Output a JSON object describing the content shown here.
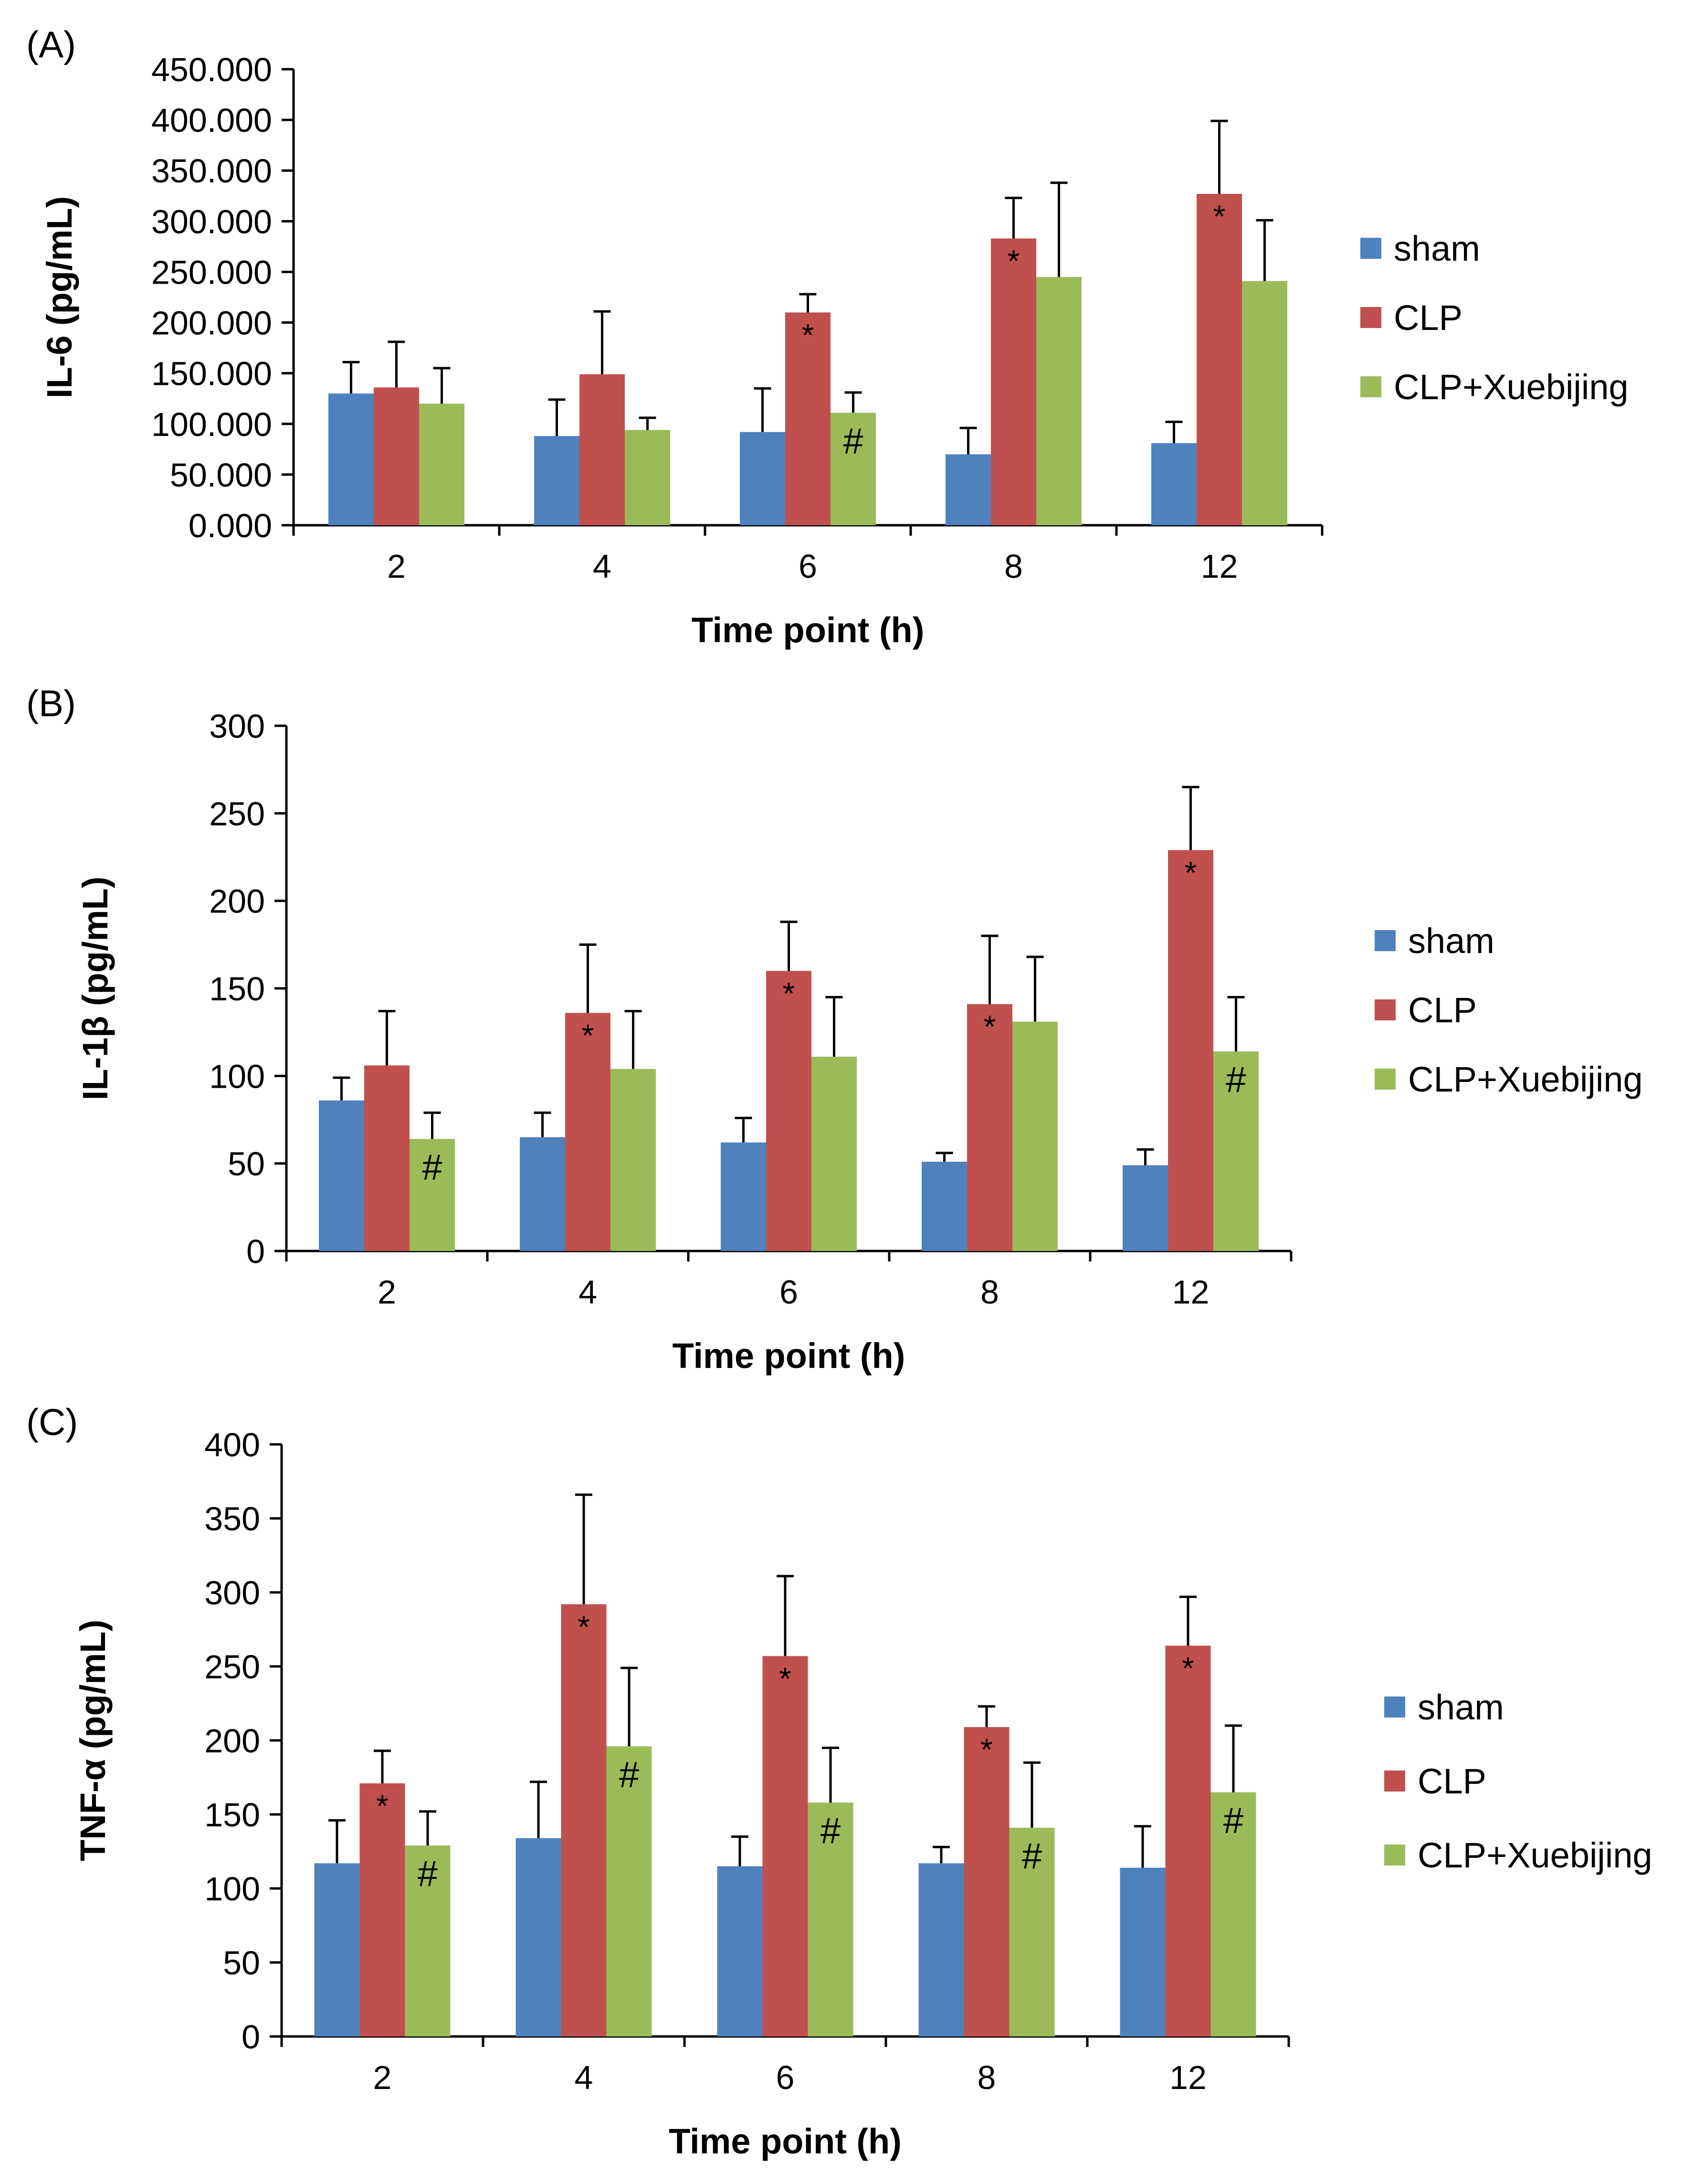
{
  "chart_data": [
    {
      "type": "bar",
      "panel_label": "(A)",
      "title": "",
      "xlabel": "Time point (h)",
      "ylabel": "IL-6 (pg/mL)",
      "categories": [
        "2",
        "4",
        "6",
        "8",
        "12"
      ],
      "ylim": [
        0,
        450
      ],
      "yticks": [
        0,
        50,
        100,
        150,
        200,
        250,
        300,
        350,
        400,
        450
      ],
      "ytick_labels": [
        "0.000",
        "50.000",
        "100.000",
        "150.000",
        "200.000",
        "250.000",
        "300.000",
        "350.000",
        "400.000",
        "450.000"
      ],
      "legend": "right",
      "series": [
        {
          "name": "sham",
          "color": "#4F81BD",
          "values": [
            130,
            88,
            92,
            70,
            81
          ],
          "errors": [
            31,
            36,
            43,
            26,
            21
          ],
          "markers": [
            "",
            "",
            "",
            "",
            ""
          ]
        },
        {
          "name": "CLP",
          "color": "#C0504D",
          "values": [
            136,
            149,
            210,
            283,
            327
          ],
          "errors": [
            45,
            62,
            18,
            40,
            72
          ],
          "markers": [
            "",
            "",
            "*",
            "*",
            "*"
          ]
        },
        {
          "name": "CLP+Xuebijing",
          "color": "#9BBB59",
          "values": [
            120,
            94,
            111,
            245,
            241
          ],
          "errors": [
            35,
            12,
            20,
            93,
            60
          ],
          "markers": [
            "",
            "",
            "#",
            "",
            ""
          ]
        }
      ]
    },
    {
      "type": "bar",
      "panel_label": "(B)",
      "title": "",
      "xlabel": "Time point (h)",
      "ylabel": "IL-1β (pg/mL)",
      "categories": [
        "2",
        "4",
        "6",
        "8",
        "12"
      ],
      "ylim": [
        0,
        300
      ],
      "yticks": [
        0,
        50,
        100,
        150,
        200,
        250,
        300
      ],
      "ytick_labels": [
        "0",
        "50",
        "100",
        "150",
        "200",
        "250",
        "300"
      ],
      "legend": "right",
      "series": [
        {
          "name": "sham",
          "color": "#4F81BD",
          "values": [
            86,
            65,
            62,
            51,
            49
          ],
          "errors": [
            13,
            14,
            14,
            5,
            9
          ],
          "markers": [
            "",
            "",
            "",
            "",
            ""
          ]
        },
        {
          "name": "CLP",
          "color": "#C0504D",
          "values": [
            106,
            136,
            160,
            141,
            229
          ],
          "errors": [
            31,
            39,
            28,
            39,
            36
          ],
          "markers": [
            "",
            "*",
            "*",
            "*",
            "*"
          ]
        },
        {
          "name": "CLP+Xuebijing",
          "color": "#9BBB59",
          "values": [
            64,
            104,
            111,
            131,
            114
          ],
          "errors": [
            15,
            33,
            34,
            37,
            31
          ],
          "markers": [
            "#",
            "",
            "",
            "",
            "#"
          ]
        }
      ]
    },
    {
      "type": "bar",
      "panel_label": "(C)",
      "title": "",
      "xlabel": "Time point (h)",
      "ylabel": "TNF-α (pg/mL)",
      "categories": [
        "2",
        "4",
        "6",
        "8",
        "12"
      ],
      "ylim": [
        0,
        400
      ],
      "yticks": [
        0,
        50,
        100,
        150,
        200,
        250,
        300,
        350,
        400
      ],
      "ytick_labels": [
        "0",
        "50",
        "100",
        "150",
        "200",
        "250",
        "300",
        "350",
        "400"
      ],
      "legend": "right",
      "series": [
        {
          "name": "sham",
          "color": "#4F81BD",
          "values": [
            117,
            134,
            115,
            117,
            114
          ],
          "errors": [
            29,
            38,
            20,
            11,
            28
          ],
          "markers": [
            "",
            "",
            "",
            "",
            ""
          ]
        },
        {
          "name": "CLP",
          "color": "#C0504D",
          "values": [
            171,
            292,
            257,
            209,
            264
          ],
          "errors": [
            22,
            74,
            54,
            14,
            33
          ],
          "markers": [
            "*",
            "*",
            "*",
            "*",
            "*"
          ]
        },
        {
          "name": "CLP+Xuebijing",
          "color": "#9BBB59",
          "values": [
            129,
            196,
            158,
            141,
            165
          ],
          "errors": [
            23,
            53,
            37,
            44,
            45
          ],
          "markers": [
            "#",
            "#",
            "#",
            "#",
            "#"
          ]
        }
      ]
    }
  ]
}
